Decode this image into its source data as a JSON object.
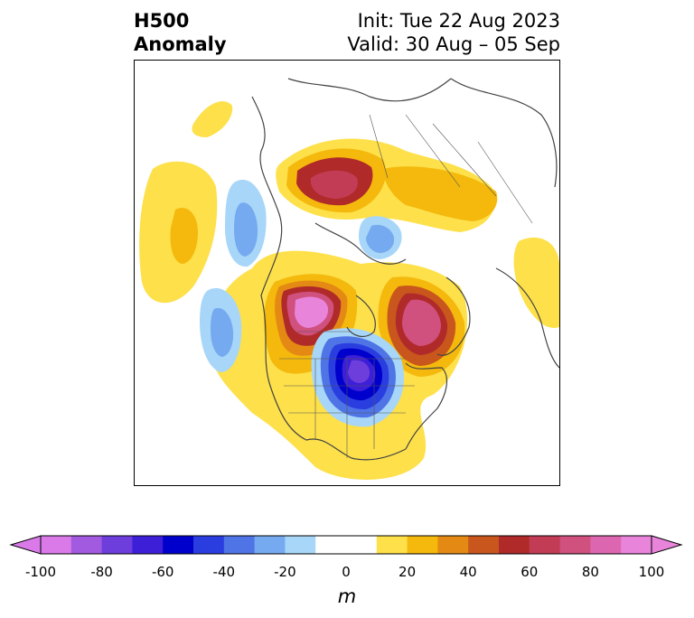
{
  "title": {
    "left_line1": "H500",
    "left_line2": "Anomaly",
    "right_line1": "Init: Tue 22 Aug 2023",
    "right_line2": "Valid: 30 Aug – 05 Sep"
  },
  "colorbar": {
    "units": "m",
    "ticks": [
      "-100",
      "-80",
      "-60",
      "-40",
      "-20",
      "0",
      "20",
      "40",
      "60",
      "80",
      "100"
    ],
    "colors": [
      "#d97ae8",
      "#a25ae0",
      "#6d3edc",
      "#3d1fd8",
      "#0000cc",
      "#2a3ee0",
      "#4f74e6",
      "#75aaf0",
      "#a8d6f8",
      "#ffffff",
      "#ffffff",
      "#fde04a",
      "#f4b90c",
      "#e48a14",
      "#c9561c",
      "#b02a2a",
      "#c23c55",
      "#d0507e",
      "#dc66b0",
      "#e884da"
    ],
    "extend_low_color": "#d97ae8",
    "extend_high_color": "#e884da"
  },
  "map": {
    "projection": "polar stereographic, North America / Arctic",
    "features": [
      {
        "name": "ridge-north-pacific",
        "sign": "positive",
        "peak_m": 30
      },
      {
        "name": "trough-gulf-of-alaska",
        "sign": "negative",
        "peak_m": -30
      },
      {
        "name": "ridge-west-canada",
        "sign": "positive",
        "peak_m": 100
      },
      {
        "name": "trough-hudson-bay",
        "sign": "negative",
        "peak_m": -70
      },
      {
        "name": "ridge-greenland",
        "sign": "positive",
        "peak_m": 80
      },
      {
        "name": "ridge-siberia",
        "sign": "positive",
        "peak_m": 70
      },
      {
        "name": "ridge-east-pacific",
        "sign": "positive",
        "peak_m": 20
      },
      {
        "name": "trough-arctic-ocean",
        "sign": "negative",
        "peak_m": -30
      }
    ]
  }
}
